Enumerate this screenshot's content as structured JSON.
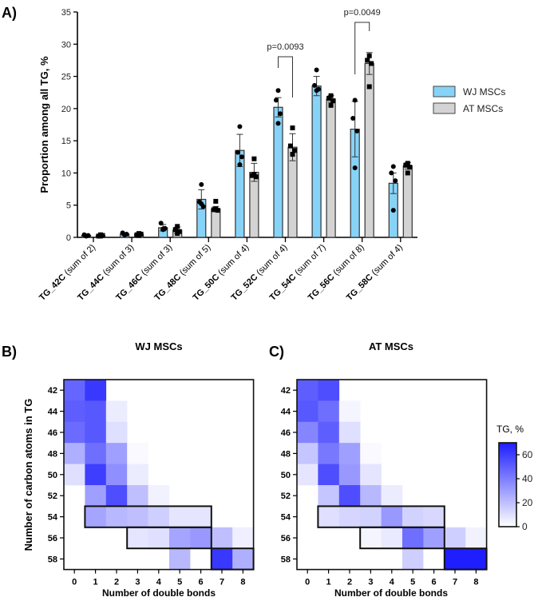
{
  "chart_data": [
    {
      "panel": "A)",
      "type": "bar",
      "ylabel": "Proportion among all TG, %",
      "ylim": [
        0,
        35
      ],
      "yticks": [
        0,
        5,
        10,
        15,
        20,
        25,
        30,
        35
      ],
      "categories": [
        {
          "bold": "TG_42C",
          "rest": " (sum of 2)"
        },
        {
          "bold": "TG_44C",
          "rest": " (sum of 3)"
        },
        {
          "bold": "TG_46C",
          "rest": " (sum of 3)"
        },
        {
          "bold": "TG_48C",
          "rest": " (sum of 5)"
        },
        {
          "bold": "TG_50C",
          "rest": " (sum of 4)"
        },
        {
          "bold": "TG_52C",
          "rest": " (sum of 4)"
        },
        {
          "bold": "TG_54C",
          "rest": " (sum of 7)"
        },
        {
          "bold": "TG_56C",
          "rest": " (sum of 8)"
        },
        {
          "bold": "TG_58C",
          "rest": " (sum of 4)"
        }
      ],
      "series": [
        {
          "name": "WJ MSCs",
          "color": "#87d3f8",
          "marker": "circle",
          "values": [
            0.3,
            0.5,
            1.5,
            5.9,
            13.5,
            20.2,
            23.5,
            16.8,
            8.4
          ],
          "sd": [
            0.2,
            0.2,
            0.5,
            1.5,
            2.5,
            1.5,
            1.5,
            4.3,
            1.6
          ],
          "points": [
            [
              0.2,
              0.4,
              0.3,
              0.2
            ],
            [
              0.4,
              0.7,
              0.5,
              0.4
            ],
            [
              1.3,
              2.2,
              1.4,
              1.2
            ],
            [
              8.2,
              5.5,
              4.8,
              5.2
            ],
            [
              17.2,
              13.2,
              12.5,
              11.3
            ],
            [
              22.8,
              21.3,
              19.2,
              17.7
            ],
            [
              26.0,
              23.6,
              23.0,
              22.8
            ],
            [
              21.3,
              18.5,
              16.5,
              10.8
            ],
            [
              11.0,
              10.0,
              8.8,
              4.2
            ]
          ]
        },
        {
          "name": "AT MSCs",
          "color": "#d3d3d3",
          "marker": "square",
          "values": [
            0.3,
            0.5,
            1.1,
            4.4,
            10.1,
            14.0,
            21.5,
            27.0,
            11.1
          ],
          "sd": [
            0.2,
            0.2,
            0.5,
            0.4,
            1.4,
            2.1,
            0.5,
            1.7,
            0.5
          ],
          "points": [
            [
              0.4,
              0.2,
              0.3,
              0.2
            ],
            [
              0.6,
              0.4,
              0.5,
              0.3
            ],
            [
              1.7,
              1.2,
              0.9,
              0.6
            ],
            [
              5.6,
              4.3,
              4.2,
              4.4
            ],
            [
              12.2,
              9.6,
              9.4,
              9.8
            ],
            [
              17.0,
              14.2,
              13.5,
              12.9
            ],
            [
              22.0,
              21.6,
              21.2,
              20.5
            ],
            [
              28.2,
              27.5,
              27.0,
              23.4
            ],
            [
              11.5,
              11.2,
              10.9,
              10.0
            ]
          ]
        }
      ],
      "annotations": [
        {
          "category": "TG_52C",
          "text": "p=0.0093"
        },
        {
          "category": "TG_56C",
          "text": "p=0.0049"
        }
      ],
      "legend": "right"
    },
    {
      "panel": "B)",
      "type": "heatmap",
      "title": "WJ MSCs",
      "xlabel": "Number of double bonds",
      "ylabel": "Number of carbon atoms in TG",
      "x": [
        0,
        1,
        2,
        3,
        4,
        5,
        6,
        7,
        8
      ],
      "y": [
        42,
        44,
        46,
        48,
        50,
        52,
        54,
        56,
        58
      ],
      "values": [
        [
          48,
          62,
          null,
          null,
          null,
          null,
          null,
          null,
          null
        ],
        [
          50,
          52,
          6,
          null,
          null,
          null,
          null,
          null,
          null
        ],
        [
          46,
          52,
          10,
          null,
          null,
          null,
          null,
          null,
          null
        ],
        [
          25,
          45,
          30,
          2,
          null,
          null,
          null,
          null,
          null
        ],
        [
          10,
          60,
          35,
          6,
          null,
          null,
          null,
          null,
          null
        ],
        [
          null,
          30,
          55,
          20,
          4,
          null,
          null,
          null,
          null
        ],
        [
          null,
          28,
          22,
          20,
          15,
          8,
          8,
          null,
          null
        ],
        [
          null,
          null,
          null,
          8,
          10,
          28,
          32,
          20,
          5
        ],
        [
          null,
          null,
          null,
          null,
          null,
          22,
          0,
          62,
          25
        ]
      ]
    },
    {
      "panel": "C)",
      "type": "heatmap",
      "title": "AT MSCs",
      "xlabel": "Number of double bonds",
      "x": [
        0,
        1,
        2,
        3,
        4,
        5,
        6,
        7,
        8
      ],
      "y": [
        42,
        44,
        46,
        48,
        50,
        52,
        54,
        56,
        58
      ],
      "values": [
        [
          50,
          55,
          null,
          null,
          null,
          null,
          null,
          null,
          null
        ],
        [
          52,
          45,
          3,
          null,
          null,
          null,
          null,
          null,
          null
        ],
        [
          38,
          50,
          10,
          null,
          null,
          null,
          null,
          null,
          null
        ],
        [
          18,
          42,
          30,
          2,
          null,
          null,
          null,
          null,
          null
        ],
        [
          8,
          55,
          32,
          8,
          null,
          null,
          null,
          null,
          null
        ],
        [
          null,
          18,
          55,
          22,
          6,
          null,
          null,
          null,
          null
        ],
        [
          null,
          10,
          13,
          14,
          32,
          14,
          12,
          null,
          null
        ],
        [
          null,
          null,
          null,
          3,
          7,
          45,
          30,
          15,
          4
        ],
        [
          null,
          null,
          null,
          null,
          null,
          15,
          0,
          70,
          70
        ]
      ],
      "colorbar": {
        "label": "TG, %",
        "range": [
          0,
          70
        ],
        "ticks": [
          0,
          20,
          40,
          60
        ],
        "low_color": "#ffffff",
        "high_color": "#1e1eff"
      }
    }
  ]
}
